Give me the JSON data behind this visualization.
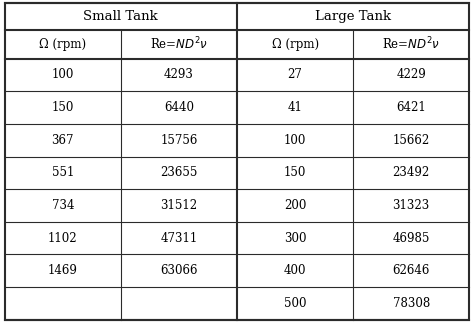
{
  "small_tank_header": "Small Tank",
  "large_tank_header": "Large Tank",
  "small_tank_data": [
    [
      "100",
      "4293"
    ],
    [
      "150",
      "6440"
    ],
    [
      "367",
      "15756"
    ],
    [
      "551",
      "23655"
    ],
    [
      "734",
      "31512"
    ],
    [
      "1102",
      "47311"
    ],
    [
      "1469",
      "63066"
    ],
    [
      "",
      ""
    ]
  ],
  "large_tank_data": [
    [
      "27",
      "4229"
    ],
    [
      "41",
      "6421"
    ],
    [
      "100",
      "15662"
    ],
    [
      "150",
      "23492"
    ],
    [
      "200",
      "31323"
    ],
    [
      "300",
      "46985"
    ],
    [
      "400",
      "62646"
    ],
    [
      "500",
      "78308"
    ]
  ],
  "bg_color": "#ffffff",
  "border_color": "#2b2b2b",
  "text_color": "#000000",
  "font_size": 8.5,
  "header_font_size": 9.5,
  "figwidth": 4.74,
  "figheight": 3.23,
  "dpi": 100
}
